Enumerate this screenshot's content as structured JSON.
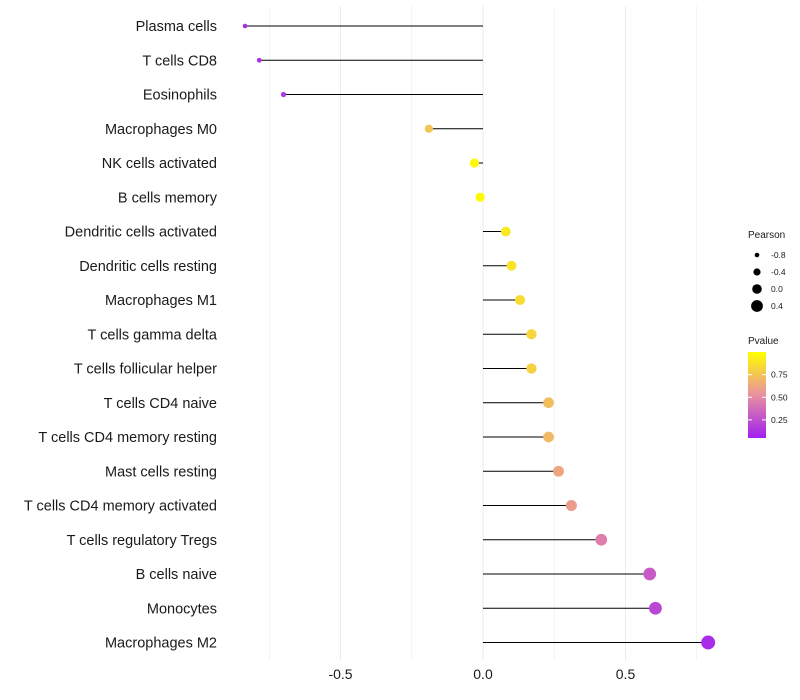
{
  "chart_data": {
    "type": "lollipop",
    "title": "",
    "xlabel": "",
    "ylabel": "",
    "xlim": [
      -0.85,
      0.82
    ],
    "x_ticks": [
      -0.5,
      0.0,
      0.5
    ],
    "x_tick_labels": [
      "-0.5",
      "0.0",
      "0.5"
    ],
    "grid": true,
    "categories": [
      "Plasma cells",
      "T cells CD8",
      "Eosinophils",
      "Macrophages M0",
      "NK cells activated",
      "B cells memory",
      "Dendritic cells activated",
      "Dendritic cells resting",
      "Macrophages M1",
      "T cells gamma delta",
      "T cells follicular helper",
      "T cells CD4 naive",
      "T cells CD4 memory resting",
      "Mast cells resting",
      "T cells CD4 memory activated",
      "T cells regulatory  Tregs ",
      "B cells naive",
      "Monocytes",
      "Macrophages M2"
    ],
    "pearson": [
      -0.835,
      -0.785,
      -0.7,
      -0.19,
      -0.03,
      -0.01,
      0.08,
      0.1,
      0.13,
      0.17,
      0.17,
      0.23,
      0.23,
      0.265,
      0.31,
      0.415,
      0.585,
      0.605,
      0.79
    ],
    "pvalue": [
      0.1,
      0.12,
      0.15,
      0.75,
      0.97,
      0.98,
      0.9,
      0.88,
      0.85,
      0.82,
      0.8,
      0.72,
      0.7,
      0.62,
      0.58,
      0.45,
      0.3,
      0.22,
      0.1
    ],
    "legend": {
      "size_title": "Pearson",
      "size_values": [
        -0.8,
        -0.4,
        0.0,
        0.4
      ],
      "size_labels": [
        "-0.8",
        "-0.4",
        "0.0",
        "0.4"
      ],
      "color_title": "Pvalue",
      "color_ticks": [
        0.25,
        0.5,
        0.75
      ],
      "color_tick_labels": [
        "0.25",
        "0.50",
        "0.75"
      ],
      "color_range": [
        0.05,
        1.0
      ],
      "color_low": "#a020f0",
      "color_mid": "#e890a0",
      "color_high": "#ffff00",
      "placement": "right"
    },
    "stem_color": "#000000",
    "grid_color": "#ebebeb"
  }
}
